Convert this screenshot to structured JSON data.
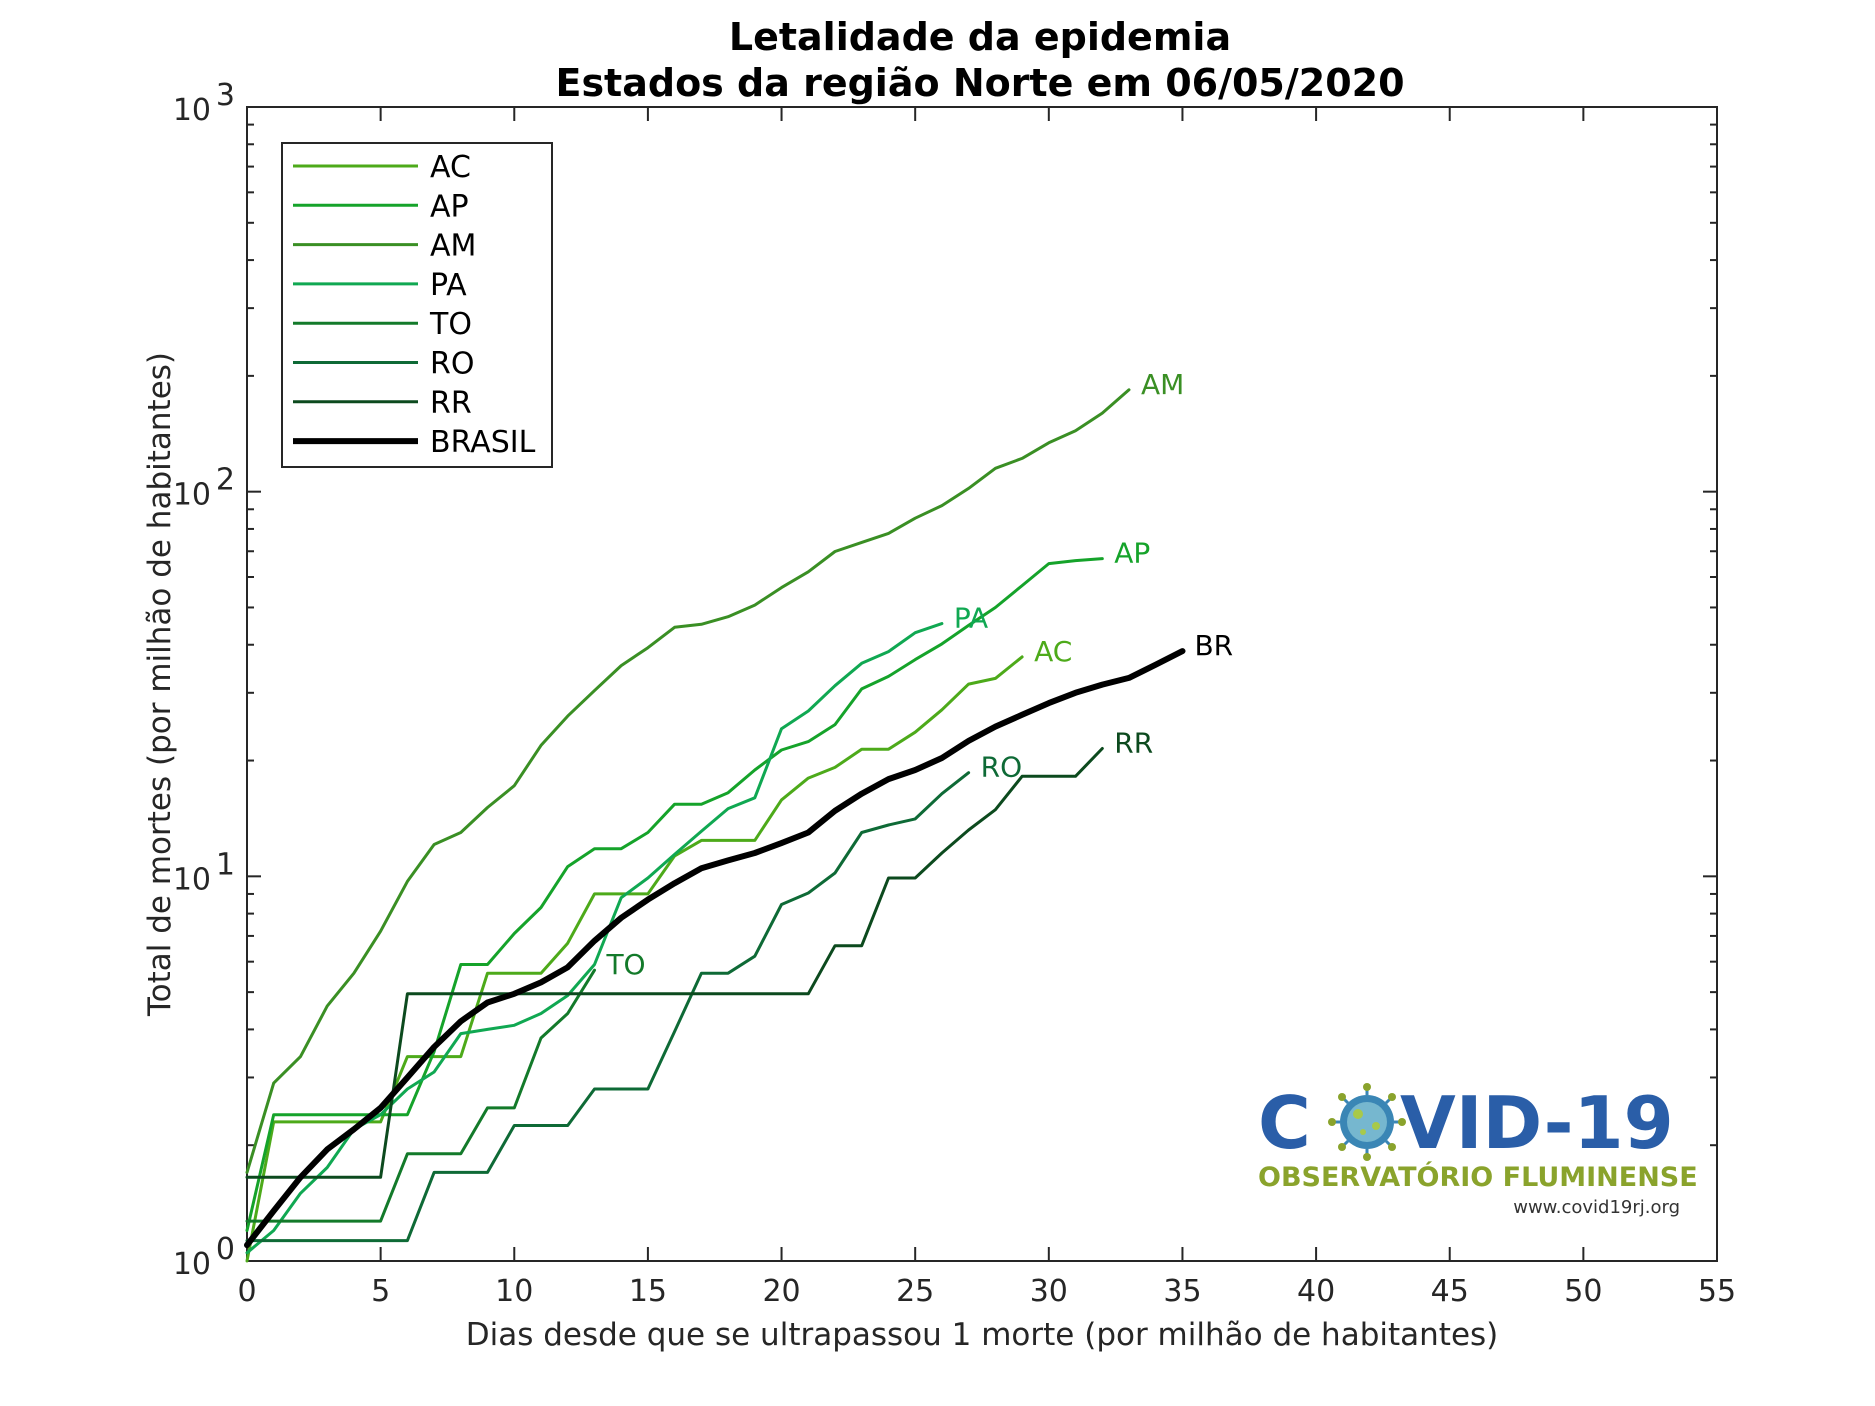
{
  "chart_data": {
    "type": "line",
    "title": "Letalidade da epidemia",
    "subtitle": "Estados da região Norte em 06/05/2020",
    "xlabel": "Dias desde que se ultrapassou 1 morte (por milhão de habitantes)",
    "ylabel": "Total de mortes (por milhão de habitantes)",
    "xlim": [
      0,
      55
    ],
    "ylim": [
      1,
      1000
    ],
    "yscale": "log",
    "grid": false,
    "legend_position": "top-left",
    "x_ticks": [
      0,
      5,
      10,
      15,
      20,
      25,
      30,
      35,
      40,
      45,
      50,
      55
    ],
    "x_tick_labels": [
      "0",
      "5",
      "10",
      "15",
      "20",
      "25",
      "30",
      "35",
      "40",
      "45",
      "50",
      "55"
    ],
    "y_ticks": [
      1,
      10,
      100,
      1000
    ],
    "y_tick_labels": [
      {
        "base": "10",
        "exp": "0"
      },
      {
        "base": "10",
        "exp": "1"
      },
      {
        "base": "10",
        "exp": "2"
      },
      {
        "base": "10",
        "exp": "3"
      }
    ],
    "series": [
      {
        "name": "AC",
        "end_label": "AC",
        "color": "#4daa1a",
        "width": 3,
        "x": [
          0,
          1,
          2,
          3,
          4,
          5,
          6,
          7,
          8,
          9,
          10,
          11,
          12,
          13,
          14,
          15,
          16,
          17,
          18,
          19,
          20,
          21,
          22,
          23,
          24,
          25,
          26,
          27,
          28,
          29
        ],
        "y": [
          1.0,
          2.3,
          2.3,
          2.3,
          2.3,
          2.3,
          3.4,
          3.4,
          3.4,
          5.6,
          5.6,
          5.6,
          6.7,
          9.0,
          9.0,
          9.0,
          11.3,
          12.4,
          12.4,
          12.4,
          15.8,
          18.0,
          19.2,
          21.4,
          21.4,
          23.7,
          27.1,
          31.6,
          32.7,
          37.2
        ]
      },
      {
        "name": "AP",
        "end_label": "AP",
        "color": "#15a32a",
        "width": 3,
        "x": [
          0,
          1,
          2,
          3,
          4,
          5,
          6,
          7,
          8,
          9,
          10,
          11,
          12,
          13,
          14,
          15,
          16,
          17,
          18,
          19,
          20,
          21,
          22,
          23,
          24,
          25,
          26,
          27,
          28,
          29,
          30,
          31,
          32
        ],
        "y": [
          1.2,
          2.4,
          2.4,
          2.4,
          2.4,
          2.4,
          2.4,
          3.5,
          5.9,
          5.9,
          7.1,
          8.3,
          10.6,
          11.8,
          11.8,
          13.0,
          15.4,
          15.4,
          16.5,
          18.9,
          21.3,
          22.4,
          24.8,
          30.7,
          33.1,
          36.6,
          40.2,
          44.9,
          50.0,
          57.0,
          65.0,
          66.2,
          67.0
        ]
      },
      {
        "name": "AM",
        "end_label": "AM",
        "color": "#3a8f24",
        "width": 3,
        "x": [
          0,
          1,
          2,
          3,
          4,
          5,
          6,
          7,
          8,
          9,
          10,
          11,
          12,
          13,
          14,
          15,
          16,
          17,
          18,
          19,
          20,
          21,
          22,
          23,
          24,
          25,
          26,
          27,
          28,
          29,
          30,
          31,
          32,
          33
        ],
        "y": [
          1.7,
          2.9,
          3.4,
          4.6,
          5.6,
          7.2,
          9.7,
          12.1,
          13.0,
          15.1,
          17.2,
          21.9,
          26.1,
          30.4,
          35.3,
          39.3,
          44.4,
          45.2,
          47.3,
          50.7,
          56.3,
          61.9,
          69.9,
          73.8,
          77.9,
          85.3,
          92.0,
          102.0,
          115.0,
          122.0,
          134.0,
          144.0,
          160.0,
          184.0
        ]
      },
      {
        "name": "PA",
        "end_label": "PA",
        "color": "#10a852",
        "width": 3,
        "x": [
          0,
          1,
          2,
          3,
          4,
          5,
          6,
          7,
          8,
          9,
          10,
          11,
          12,
          13,
          14,
          15,
          16,
          17,
          18,
          19,
          20,
          21,
          22,
          23,
          24,
          25,
          26
        ],
        "y": [
          1.05,
          1.2,
          1.5,
          1.75,
          2.2,
          2.4,
          2.8,
          3.1,
          3.9,
          4.0,
          4.1,
          4.4,
          4.9,
          5.9,
          8.8,
          9.9,
          11.4,
          13.1,
          15.0,
          16.0,
          24.2,
          26.9,
          31.3,
          35.8,
          38.4,
          43.0,
          45.4
        ]
      },
      {
        "name": "TO",
        "end_label": "TO",
        "color": "#137a2a",
        "width": 3,
        "x": [
          0,
          1,
          2,
          3,
          4,
          5,
          6,
          7,
          8,
          9,
          10,
          11,
          12,
          13
        ],
        "y": [
          1.27,
          1.27,
          1.27,
          1.27,
          1.27,
          1.27,
          1.9,
          1.9,
          1.9,
          2.5,
          2.5,
          3.8,
          4.4,
          5.7
        ]
      },
      {
        "name": "RO",
        "end_label": "RO",
        "color": "#0e6a36",
        "width": 3,
        "x": [
          0,
          1,
          2,
          3,
          4,
          5,
          6,
          7,
          8,
          9,
          10,
          11,
          12,
          13,
          14,
          15,
          16,
          17,
          18,
          19,
          20,
          21,
          22,
          23,
          24,
          25,
          26,
          27
        ],
        "y": [
          1.13,
          1.13,
          1.13,
          1.13,
          1.13,
          1.13,
          1.13,
          1.7,
          1.7,
          1.7,
          2.25,
          2.25,
          2.25,
          2.8,
          2.8,
          2.8,
          3.95,
          5.6,
          5.6,
          6.2,
          8.45,
          9.05,
          10.2,
          13.0,
          13.6,
          14.1,
          16.4,
          18.6
        ]
      },
      {
        "name": "RR",
        "end_label": "RR",
        "color": "#0c4a1e",
        "width": 3,
        "x": [
          0,
          1,
          2,
          3,
          4,
          5,
          6,
          7,
          8,
          9,
          10,
          11,
          12,
          13,
          14,
          15,
          16,
          17,
          18,
          19,
          20,
          21,
          22,
          23,
          24,
          25,
          26,
          27,
          28,
          29,
          30,
          31,
          32
        ],
        "y": [
          1.65,
          1.65,
          1.65,
          1.65,
          1.65,
          1.65,
          4.95,
          4.95,
          4.95,
          4.95,
          4.95,
          4.95,
          4.95,
          4.95,
          4.95,
          4.95,
          4.95,
          4.95,
          4.95,
          4.95,
          4.95,
          4.95,
          6.6,
          6.6,
          9.9,
          9.9,
          11.5,
          13.2,
          14.9,
          18.2,
          18.2,
          18.2,
          21.5
        ]
      },
      {
        "name": "BRASIL",
        "end_label": "BR",
        "color": "#000000",
        "width": 6,
        "x": [
          0,
          1,
          2,
          3,
          4,
          5,
          6,
          7,
          8,
          9,
          10,
          11,
          12,
          13,
          14,
          15,
          16,
          17,
          18,
          19,
          20,
          21,
          22,
          23,
          24,
          25,
          26,
          27,
          28,
          29,
          30,
          31,
          32,
          33,
          34,
          35
        ],
        "y": [
          1.1,
          1.35,
          1.65,
          1.95,
          2.2,
          2.5,
          3.0,
          3.6,
          4.2,
          4.7,
          4.95,
          5.3,
          5.8,
          6.8,
          7.8,
          8.7,
          9.6,
          10.5,
          11.0,
          11.5,
          12.2,
          13.0,
          14.8,
          16.4,
          17.9,
          18.9,
          20.3,
          22.5,
          24.5,
          26.3,
          28.2,
          30.0,
          31.5,
          32.8,
          35.5,
          38.5
        ]
      }
    ]
  },
  "logo": {
    "main_before": "C",
    "main_after": "VID-19",
    "subtitle": "OBSERVATÓRIO FLUMINENSE",
    "url": "www.covid19rj.org"
  }
}
